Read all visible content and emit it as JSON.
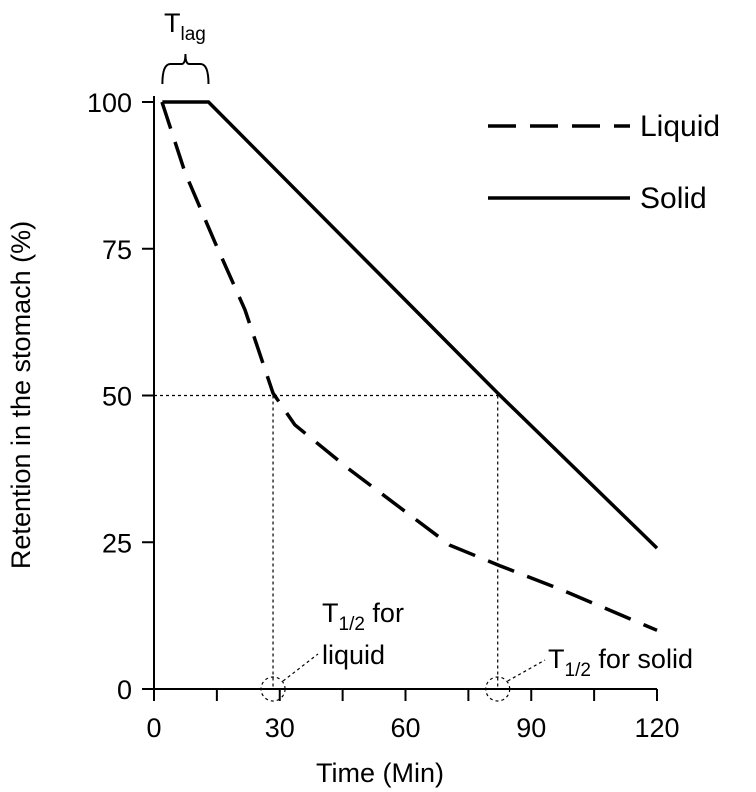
{
  "chart_data": {
    "type": "line",
    "xlabel": "Time (Min)",
    "ylabel": "Retention in the stomach (%)",
    "xlim": [
      0,
      120
    ],
    "ylim": [
      0,
      100
    ],
    "xticks": [
      0,
      30,
      60,
      90,
      120
    ],
    "xminorticks": [
      15,
      45,
      75,
      105
    ],
    "yticks": [
      0,
      25,
      50,
      75,
      100
    ],
    "legend": "upper right",
    "series": [
      {
        "name": "Liquid",
        "color": "#000000",
        "dash": true,
        "x": [
          1.9,
          7.4,
          14.6,
          21.7,
          28.4,
          33.6,
          46.8,
          70.6,
          82.5,
          96.9,
          120
        ],
        "values": [
          100,
          88,
          76,
          64.6,
          50.4,
          45,
          37.3,
          24.5,
          21,
          17,
          10
        ]
      },
      {
        "name": "Solid",
        "color": "#000000",
        "dash": false,
        "x": [
          2,
          13,
          82,
          120
        ],
        "values": [
          100,
          100,
          50.4,
          24
        ]
      }
    ],
    "half_level": 50,
    "half_times": [
      28.4,
      82
    ],
    "lag_interval": [
      2,
      13
    ],
    "lag_label": {
      "main": "T",
      "sub": "lag"
    },
    "half_liquid": {
      "main": "T",
      "sub": "1/2",
      "rest": " for",
      "line2": "liquid"
    },
    "half_solid": {
      "main": "T",
      "sub": "1/2",
      "rest": " for solid"
    }
  }
}
